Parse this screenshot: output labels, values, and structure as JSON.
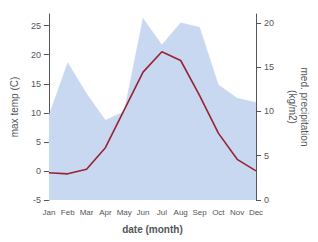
{
  "chart_data": {
    "type": "line",
    "categories": [
      "Jan",
      "Feb",
      "Mar",
      "Apr",
      "May",
      "Jun",
      "Jul",
      "Aug",
      "Sep",
      "Oct",
      "Nov",
      "Dec"
    ],
    "series": [
      {
        "type": "area",
        "axis": "y2",
        "color": "#c8d8f0",
        "values": [
          9.5,
          15.5,
          12.0,
          9.0,
          10.0,
          20.5,
          17.5,
          20.0,
          19.5,
          13.0,
          11.5,
          11.0
        ]
      },
      {
        "type": "line",
        "axis": "y",
        "color": "#992233",
        "values": [
          -0.3,
          -0.5,
          0.3,
          4.0,
          10.5,
          17.0,
          20.5,
          19.0,
          13.0,
          6.5,
          2.0,
          0.0
        ]
      }
    ],
    "xlabel": "date (month)",
    "ylabel": "max temp (C)",
    "y2label": "med. precipitation\n(kg/m2)",
    "ylim": [
      -5,
      27
    ],
    "yticks": [
      -5,
      0,
      5,
      10,
      15,
      20,
      25
    ],
    "y2lim": [
      0,
      21
    ],
    "y2ticks": [
      0,
      5,
      10,
      15,
      20
    ],
    "grid": false
  }
}
